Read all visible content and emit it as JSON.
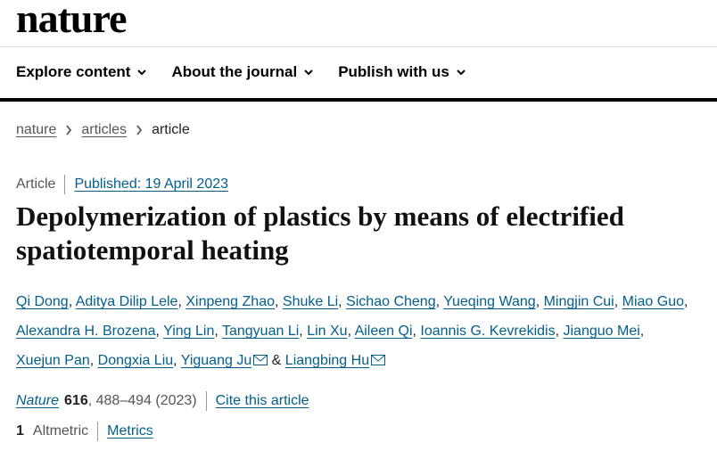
{
  "header": {
    "logo": "nature"
  },
  "nav": [
    "Explore content",
    "About the journal",
    "Publish with us"
  ],
  "breadcrumb": [
    "nature",
    "articles",
    "article"
  ],
  "article": {
    "type": "Article",
    "published": "Published: 19 April 2023",
    "title": "Depolymerization of plastics by means of electrified spatiotemporal heating",
    "authors": [
      {
        "name": "Qi Dong",
        "corresponding": false
      },
      {
        "name": "Aditya Dilip Lele",
        "corresponding": false
      },
      {
        "name": "Xinpeng Zhao",
        "corresponding": false
      },
      {
        "name": "Shuke Li",
        "corresponding": false
      },
      {
        "name": "Sichao Cheng",
        "corresponding": false
      },
      {
        "name": "Yueqing Wang",
        "corresponding": false
      },
      {
        "name": "Mingjin Cui",
        "corresponding": false
      },
      {
        "name": "Miao Guo",
        "corresponding": false
      },
      {
        "name": "Alexandra H. Brozena",
        "corresponding": false
      },
      {
        "name": "Ying Lin",
        "corresponding": false
      },
      {
        "name": "Tangyuan Li",
        "corresponding": false
      },
      {
        "name": "Lin Xu",
        "corresponding": false
      },
      {
        "name": "Aileen Qi",
        "corresponding": false
      },
      {
        "name": "Ioannis G. Kevrekidis",
        "corresponding": false
      },
      {
        "name": "Jianguo Mei",
        "corresponding": false
      },
      {
        "name": "Xuejun Pan",
        "corresponding": false
      },
      {
        "name": "Dongxia Liu",
        "corresponding": false
      },
      {
        "name": "Yiguang Ju",
        "corresponding": true
      },
      {
        "name": "Liangbing Hu",
        "corresponding": true
      }
    ],
    "separator": ",",
    "conjunction": "&",
    "citation": {
      "journal": "Nature",
      "volume": "616",
      "rest": ", 488–494 (2023)",
      "cite": "Cite this article"
    },
    "metrics": {
      "altmetric": "1",
      "altmetric_label": "Altmetric",
      "link": "Metrics"
    }
  }
}
